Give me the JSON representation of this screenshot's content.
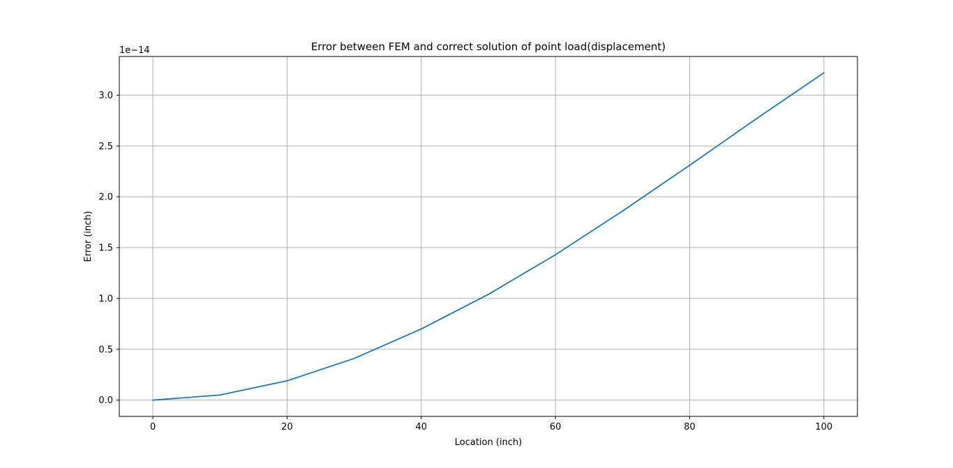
{
  "chart_data": {
    "type": "line",
    "title": "Error between FEM and correct solution of point load(displacement)",
    "xlabel": "Location (inch)",
    "ylabel": "Error (inch)",
    "y_offset_label": "1e−14",
    "xlim": [
      -5,
      105
    ],
    "ylim": [
      -0.16,
      3.38
    ],
    "x_ticks": [
      0,
      20,
      40,
      60,
      80,
      100
    ],
    "x_tick_labels": [
      "0",
      "20",
      "40",
      "60",
      "80",
      "100"
    ],
    "y_ticks": [
      0.0,
      0.5,
      1.0,
      1.5,
      2.0,
      2.5,
      3.0
    ],
    "y_tick_labels": [
      "0.0",
      "0.5",
      "1.0",
      "1.5",
      "2.0",
      "2.5",
      "3.0"
    ],
    "grid": true,
    "series": [
      {
        "color": "#1f77b4",
        "x": [
          0,
          10,
          20,
          30,
          40,
          50,
          60,
          70,
          80,
          90,
          100
        ],
        "y": [
          0.0,
          0.05,
          0.19,
          0.41,
          0.7,
          1.04,
          1.43,
          1.86,
          2.31,
          2.77,
          3.22
        ]
      }
    ]
  }
}
